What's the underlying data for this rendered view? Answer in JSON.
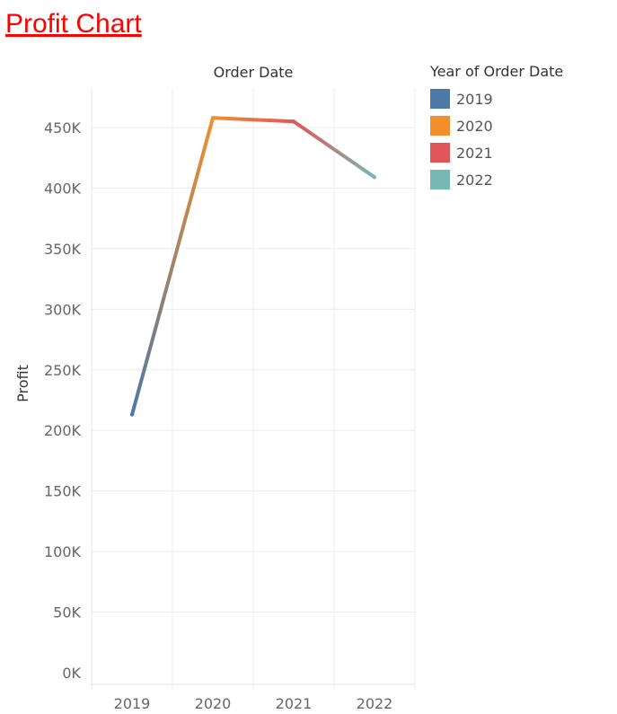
{
  "page": {
    "title": "Profit Chart"
  },
  "legend": {
    "title": "Year of Order Date",
    "items": [
      {
        "label": "2019",
        "color": "#4e79a7"
      },
      {
        "label": "2020",
        "color": "#f28e2b"
      },
      {
        "label": "2021",
        "color": "#e15759"
      },
      {
        "label": "2022",
        "color": "#76b7b2"
      }
    ]
  },
  "chart_data": {
    "type": "line",
    "title": "Order Date",
    "xlabel": "",
    "ylabel": "Profit",
    "categories": [
      "2019",
      "2020",
      "2021",
      "2022"
    ],
    "values": [
      213000,
      458000,
      455000,
      409000
    ],
    "ylim": [
      0,
      475000
    ],
    "yticks": [
      0,
      50000,
      100000,
      150000,
      200000,
      250000,
      300000,
      350000,
      400000,
      450000
    ],
    "ytick_labels": [
      "0K",
      "50K",
      "100K",
      "150K",
      "200K",
      "250K",
      "300K",
      "350K",
      "400K",
      "450K"
    ],
    "grid": true
  }
}
